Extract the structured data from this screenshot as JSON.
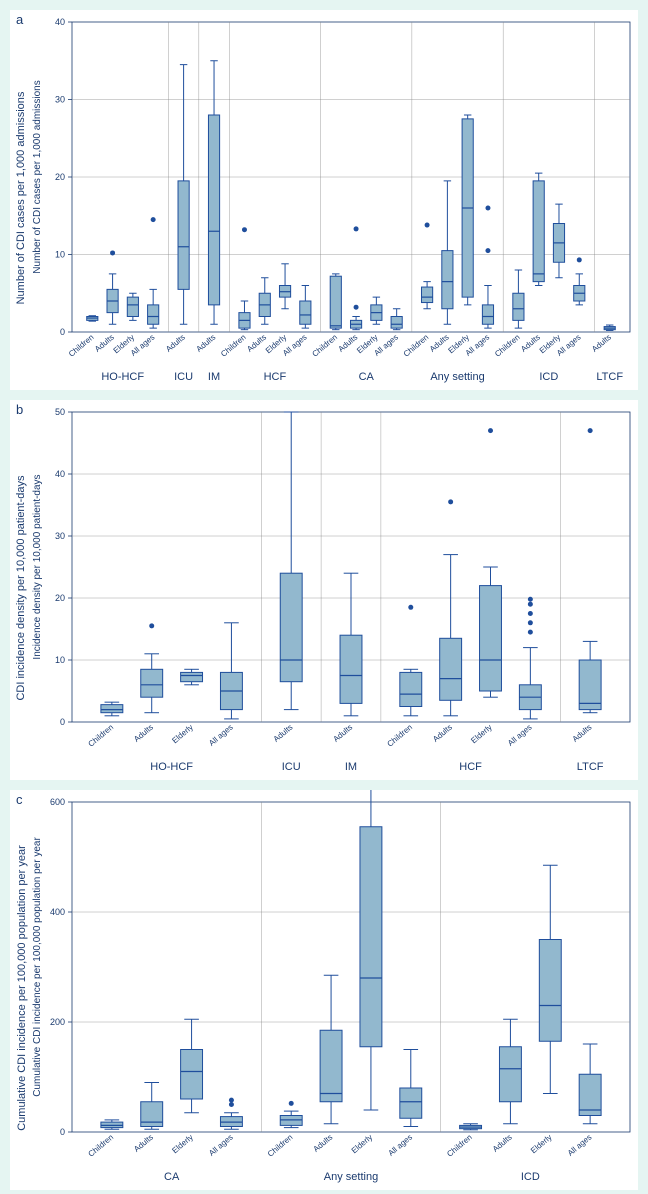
{
  "colors": {
    "page_bg": "#e5f5f2",
    "plot_bg": "#ffffff",
    "box_fill": "#92b8ce",
    "box_stroke": "#1f4e9c",
    "text": "#1a3a6e",
    "grid": "#888888",
    "divider": "#888888"
  },
  "panelA": {
    "letter": "a",
    "ytitle_outer": "Number of CDI cases per 1,000 admissions",
    "ytitle_inner": "Number of CDI cases per 1,000 admissions",
    "ylim": [
      0,
      40
    ],
    "ytick_step": 10,
    "line_width": 1,
    "outlier_radius": 2.5,
    "xlabel_fontsize": 8,
    "ylabel_fontsize": 9,
    "groups": [
      {
        "name": "HO-HCF",
        "cats": [
          {
            "label": "Children",
            "q1": 1.5,
            "median": 1.8,
            "q3": 2.0,
            "lo": 1.4,
            "hi": 2.1,
            "outliers": []
          },
          {
            "label": "Adults",
            "q1": 2.5,
            "median": 4.0,
            "q3": 5.5,
            "lo": 1.0,
            "hi": 7.5,
            "outliers": [
              10.2
            ]
          },
          {
            "label": "Elderly",
            "q1": 2.0,
            "median": 3.5,
            "q3": 4.5,
            "lo": 1.5,
            "hi": 5.0,
            "outliers": []
          },
          {
            "label": "All ages",
            "q1": 1.0,
            "median": 2.0,
            "q3": 3.5,
            "lo": 0.5,
            "hi": 5.5,
            "outliers": [
              14.5
            ]
          }
        ]
      },
      {
        "name": "ICU",
        "cats": [
          {
            "label": "Adults",
            "q1": 5.5,
            "median": 11.0,
            "q3": 19.5,
            "lo": 1.0,
            "hi": 34.5,
            "outliers": []
          }
        ]
      },
      {
        "name": "IM",
        "cats": [
          {
            "label": "Adults",
            "q1": 3.5,
            "median": 13.0,
            "q3": 28.0,
            "lo": 1.0,
            "hi": 35.0,
            "outliers": []
          }
        ]
      },
      {
        "name": "HCF",
        "cats": [
          {
            "label": "Children",
            "q1": 0.5,
            "median": 1.5,
            "q3": 2.5,
            "lo": 0.3,
            "hi": 4.0,
            "outliers": [
              13.2
            ]
          },
          {
            "label": "Adults",
            "q1": 2.0,
            "median": 3.5,
            "q3": 5.0,
            "lo": 1.0,
            "hi": 7.0,
            "outliers": []
          },
          {
            "label": "Elderly",
            "q1": 4.5,
            "median": 5.2,
            "q3": 6.0,
            "lo": 3.0,
            "hi": 8.8,
            "outliers": []
          },
          {
            "label": "All ages",
            "q1": 1.0,
            "median": 2.2,
            "q3": 4.0,
            "lo": 0.5,
            "hi": 6.0,
            "outliers": []
          }
        ]
      },
      {
        "name": "CA",
        "cats": [
          {
            "label": "Children",
            "q1": 0.5,
            "median": 0.8,
            "q3": 7.2,
            "lo": 0.3,
            "hi": 7.5,
            "outliers": []
          },
          {
            "label": "Adults",
            "q1": 0.5,
            "median": 1.0,
            "q3": 1.5,
            "lo": 0.3,
            "hi": 2.0,
            "outliers": [
              3.2,
              13.3
            ]
          },
          {
            "label": "Elderly",
            "q1": 1.5,
            "median": 2.5,
            "q3": 3.5,
            "lo": 1.0,
            "hi": 4.5,
            "outliers": []
          },
          {
            "label": "All ages",
            "q1": 0.5,
            "median": 1.0,
            "q3": 2.0,
            "lo": 0.3,
            "hi": 3.0,
            "outliers": []
          }
        ]
      },
      {
        "name": "Any setting",
        "cats": [
          {
            "label": "Children",
            "q1": 3.8,
            "median": 4.5,
            "q3": 5.8,
            "lo": 3.0,
            "hi": 6.5,
            "outliers": [
              13.8
            ]
          },
          {
            "label": "Adults",
            "q1": 3.0,
            "median": 6.5,
            "q3": 10.5,
            "lo": 1.0,
            "hi": 19.5,
            "outliers": []
          },
          {
            "label": "Elderly",
            "q1": 4.5,
            "median": 16.0,
            "q3": 27.5,
            "lo": 3.5,
            "hi": 28.0,
            "outliers": []
          },
          {
            "label": "All ages",
            "q1": 1.0,
            "median": 2.0,
            "q3": 3.5,
            "lo": 0.5,
            "hi": 6.0,
            "outliers": [
              10.5,
              16.0
            ]
          }
        ]
      },
      {
        "name": "ICD",
        "cats": [
          {
            "label": "Children",
            "q1": 1.5,
            "median": 3.0,
            "q3": 5.0,
            "lo": 0.5,
            "hi": 8.0,
            "outliers": []
          },
          {
            "label": "Adults",
            "q1": 6.5,
            "median": 7.5,
            "q3": 19.5,
            "lo": 6.0,
            "hi": 20.5,
            "outliers": []
          },
          {
            "label": "Elderly",
            "q1": 9.0,
            "median": 11.5,
            "q3": 14.0,
            "lo": 7.0,
            "hi": 16.5,
            "outliers": []
          },
          {
            "label": "All ages",
            "q1": 4.0,
            "median": 5.0,
            "q3": 6.0,
            "lo": 3.5,
            "hi": 7.5,
            "outliers": [
              9.3
            ]
          }
        ]
      },
      {
        "name": "LTCF",
        "cats": [
          {
            "label": "Adults",
            "q1": 0.3,
            "median": 0.5,
            "q3": 0.7,
            "lo": 0.2,
            "hi": 0.9,
            "outliers": []
          }
        ]
      }
    ]
  },
  "panelB": {
    "letter": "b",
    "ytitle_outer": "CDI incidence density per 10,000 patient-days",
    "ytitle_inner": "Incidence density per 10,000 patient-days",
    "ylim": [
      0,
      50
    ],
    "ytick_step": 10,
    "line_width": 1,
    "outlier_radius": 2.5,
    "xlabel_fontsize": 8,
    "ylabel_fontsize": 9,
    "groups": [
      {
        "name": "HO-HCF",
        "cats": [
          {
            "label": "Children",
            "q1": 1.5,
            "median": 2.0,
            "q3": 2.8,
            "lo": 1.0,
            "hi": 3.2,
            "outliers": []
          },
          {
            "label": "Adults",
            "q1": 4.0,
            "median": 6.0,
            "q3": 8.5,
            "lo": 1.5,
            "hi": 11.0,
            "outliers": [
              15.5
            ]
          },
          {
            "label": "Elderly",
            "q1": 6.5,
            "median": 7.5,
            "q3": 8.0,
            "lo": 6.0,
            "hi": 8.5,
            "outliers": []
          },
          {
            "label": "All ages",
            "q1": 2.0,
            "median": 5.0,
            "q3": 8.0,
            "lo": 0.5,
            "hi": 16.0,
            "outliers": []
          }
        ]
      },
      {
        "name": "ICU",
        "cats": [
          {
            "label": "Adults",
            "q1": 6.5,
            "median": 10.0,
            "q3": 24.0,
            "lo": 2.0,
            "hi": 50.0,
            "outliers": []
          }
        ]
      },
      {
        "name": "IM",
        "cats": [
          {
            "label": "Adults",
            "q1": 3.0,
            "median": 7.5,
            "q3": 14.0,
            "lo": 1.0,
            "hi": 24.0,
            "outliers": []
          }
        ]
      },
      {
        "name": "HCF",
        "cats": [
          {
            "label": "Children",
            "q1": 2.5,
            "median": 4.5,
            "q3": 8.0,
            "lo": 1.0,
            "hi": 8.5,
            "outliers": [
              18.5
            ]
          },
          {
            "label": "Adults",
            "q1": 3.5,
            "median": 7.0,
            "q3": 13.5,
            "lo": 1.0,
            "hi": 27.0,
            "outliers": [
              35.5
            ]
          },
          {
            "label": "Elderly",
            "q1": 5.0,
            "median": 10.0,
            "q3": 22.0,
            "lo": 4.0,
            "hi": 25.0,
            "outliers": [
              47.0
            ]
          },
          {
            "label": "All ages",
            "q1": 2.0,
            "median": 4.0,
            "q3": 6.0,
            "lo": 0.5,
            "hi": 12.0,
            "outliers": [
              14.5,
              16.0,
              17.5,
              19.0,
              19.8
            ]
          }
        ]
      },
      {
        "name": "LTCF",
        "cats": [
          {
            "label": "Adults",
            "q1": 2.0,
            "median": 3.0,
            "q3": 10.0,
            "lo": 1.5,
            "hi": 13.0,
            "outliers": [
              47.0
            ]
          }
        ]
      }
    ]
  },
  "panelC": {
    "letter": "c",
    "ytitle_outer": "Cumulative CDI incidence per 100,000 population per year",
    "ytitle_inner": "Cumulative CDI incidence per 100,000 population per year",
    "ylim": [
      0,
      600
    ],
    "ytick_step": 200,
    "line_width": 1,
    "outlier_radius": 2.5,
    "xlabel_fontsize": 8,
    "ylabel_fontsize": 9,
    "groups": [
      {
        "name": "CA",
        "cats": [
          {
            "label": "Children",
            "q1": 8,
            "median": 12,
            "q3": 18,
            "lo": 5,
            "hi": 22,
            "outliers": []
          },
          {
            "label": "Adults",
            "q1": 10,
            "median": 18,
            "q3": 55,
            "lo": 5,
            "hi": 90,
            "outliers": []
          },
          {
            "label": "Elderly",
            "q1": 60,
            "median": 110,
            "q3": 150,
            "lo": 35,
            "hi": 205,
            "outliers": []
          },
          {
            "label": "All ages",
            "q1": 10,
            "median": 18,
            "q3": 28,
            "lo": 5,
            "hi": 35,
            "outliers": [
              50,
              58
            ]
          }
        ]
      },
      {
        "name": "Any setting",
        "cats": [
          {
            "label": "Children",
            "q1": 12,
            "median": 22,
            "q3": 30,
            "lo": 8,
            "hi": 38,
            "outliers": [
              52
            ]
          },
          {
            "label": "Adults",
            "q1": 55,
            "median": 70,
            "q3": 185,
            "lo": 15,
            "hi": 285,
            "outliers": []
          },
          {
            "label": "Elderly",
            "q1": 155,
            "median": 280,
            "q3": 555,
            "lo": 40,
            "hi": 630,
            "outliers": []
          },
          {
            "label": "All ages",
            "q1": 25,
            "median": 55,
            "q3": 80,
            "lo": 10,
            "hi": 150,
            "outliers": []
          }
        ]
      },
      {
        "name": "ICD",
        "cats": [
          {
            "label": "Children",
            "q1": 6,
            "median": 9,
            "q3": 12,
            "lo": 4,
            "hi": 15,
            "outliers": []
          },
          {
            "label": "Adults",
            "q1": 55,
            "median": 115,
            "q3": 155,
            "lo": 15,
            "hi": 205,
            "outliers": []
          },
          {
            "label": "Elderly",
            "q1": 165,
            "median": 230,
            "q3": 350,
            "lo": 70,
            "hi": 485,
            "outliers": []
          },
          {
            "label": "All ages",
            "q1": 30,
            "median": 40,
            "q3": 105,
            "lo": 15,
            "hi": 160,
            "outliers": []
          }
        ]
      }
    ]
  }
}
